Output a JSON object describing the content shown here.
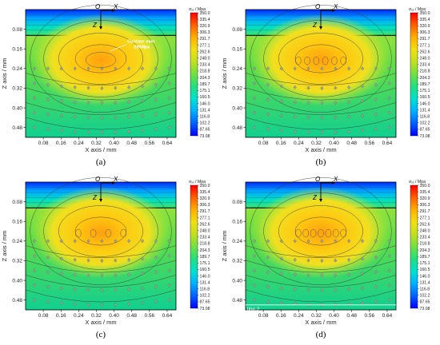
{
  "figure": {
    "panels": [
      {
        "id": "a",
        "caption": "(a)",
        "annotation": "Contour over\n295Mpa",
        "line_label": ""
      },
      {
        "id": "b",
        "caption": "(b)",
        "annotation": "",
        "line_label": ""
      },
      {
        "id": "c",
        "caption": "(c)",
        "annotation": "",
        "line_label": ""
      },
      {
        "id": "d",
        "caption": "(d)",
        "annotation": "",
        "line_label": "line 2"
      }
    ]
  },
  "chart_data": [
    {
      "type": "heatmap",
      "panel": "a",
      "caption": "(a)",
      "xlabel": "X axis / mm",
      "ylabel": "Z axis / mm",
      "xticks": [
        "0.08",
        "0.16",
        "0.24",
        "0.32",
        "0.40",
        "0.48",
        "0.56",
        "0.64"
      ],
      "yticks": [
        "0.08",
        "0.16",
        "0.24",
        "0.32",
        "0.40",
        "0.48"
      ],
      "xlim": [
        0,
        0.68
      ],
      "ylim": [
        0,
        0.52
      ],
      "origin_labels": {
        "o": "O",
        "x": "X",
        "z": "Z"
      },
      "colorbar_title": "σₓₓ / Mpa",
      "colorbar_ticks": [
        "350.0",
        "335.4",
        "320.9",
        "306.3",
        "291.7",
        "277.1",
        "262.6",
        "248.0",
        "233.4",
        "218.8",
        "204.3",
        "189.7",
        "175.1",
        "160.5",
        "146.0",
        "131.4",
        "116.8",
        "102.2",
        "87.65",
        "73.08"
      ],
      "zlim": [
        73.08,
        350.0
      ],
      "annotation": "Contour over 295Mpa",
      "marker_rows_mm": [
        0.24,
        0.3,
        0.36,
        0.42,
        0.48
      ]
    },
    {
      "type": "heatmap",
      "panel": "b",
      "caption": "(b)",
      "xlabel": "X axis / mm",
      "ylabel": "Z axis / mm",
      "xticks": [
        "0.08",
        "0.16",
        "0.24",
        "0.32",
        "0.40",
        "0.48",
        "0.56",
        "0.64"
      ],
      "yticks": [
        "0.08",
        "0.16",
        "0.24",
        "0.32",
        "0.40",
        "0.48"
      ],
      "xlim": [
        0,
        0.68
      ],
      "ylim": [
        0,
        0.52
      ],
      "origin_labels": {
        "o": "O",
        "x": "X",
        "z": "Z"
      },
      "colorbar_title": "σₓₓ / Mpa",
      "colorbar_ticks": [
        "350.0",
        "335.4",
        "320.9",
        "306.3",
        "291.7",
        "277.1",
        "262.6",
        "248.0",
        "233.4",
        "218.8",
        "204.3",
        "189.7",
        "175.1",
        "160.5",
        "146.0",
        "131.4",
        "116.8",
        "102.2",
        "87.65",
        "73.08"
      ],
      "zlim": [
        73.08,
        350.0
      ],
      "marker_rows_mm": [
        0.24,
        0.3,
        0.36,
        0.42,
        0.48
      ]
    },
    {
      "type": "heatmap",
      "panel": "c",
      "caption": "(c)",
      "xlabel": "X axis / mm",
      "ylabel": "Z axis / mm",
      "xticks": [
        "0.08",
        "0.16",
        "0.24",
        "0.32",
        "0.40",
        "0.48",
        "0.56",
        "0.64"
      ],
      "yticks": [
        "0.08",
        "0.16",
        "0.24",
        "0.32",
        "0.40",
        "0.48"
      ],
      "xlim": [
        0,
        0.68
      ],
      "ylim": [
        0,
        0.52
      ],
      "origin_labels": {
        "o": "O",
        "x": "X",
        "z": "Z"
      },
      "colorbar_title": "σₓₓ / Mpa",
      "colorbar_ticks": [
        "350.0",
        "335.4",
        "320.9",
        "306.3",
        "291.7",
        "277.1",
        "262.6",
        "248.0",
        "233.4",
        "218.8",
        "204.3",
        "189.7",
        "175.1",
        "160.5",
        "146.0",
        "131.4",
        "116.8",
        "102.2",
        "87.65",
        "73.08"
      ],
      "zlim": [
        73.08,
        350.0
      ],
      "marker_rows_mm": [
        0.24,
        0.3,
        0.36,
        0.42,
        0.48
      ]
    },
    {
      "type": "heatmap",
      "panel": "d",
      "caption": "(d)",
      "xlabel": "X axis / mm",
      "ylabel": "Z axis / mm",
      "xticks": [
        "0.08",
        "0.16",
        "0.24",
        "0.32",
        "0.40",
        "0.48",
        "0.56",
        "0.64"
      ],
      "yticks": [
        "0.08",
        "0.16",
        "0.24",
        "0.32",
        "0.40",
        "0.48"
      ],
      "xlim": [
        0,
        0.68
      ],
      "ylim": [
        0,
        0.52
      ],
      "origin_labels": {
        "o": "O",
        "x": "X",
        "z": "Z"
      },
      "colorbar_title": "σₓₓ / Mpa",
      "colorbar_ticks": [
        "350.0",
        "335.4",
        "320.9",
        "306.3",
        "291.7",
        "277.1",
        "262.6",
        "248.0",
        "233.4",
        "218.8",
        "204.3",
        "189.7",
        "175.1",
        "160.5",
        "146.0",
        "131.4",
        "116.8",
        "102.2",
        "87.65",
        "73.08"
      ],
      "zlim": [
        73.08,
        350.0
      ],
      "line_label": "line 2",
      "line_z_mm": 0.5,
      "marker_rows_mm": [
        0.24,
        0.3,
        0.36,
        0.42,
        0.48
      ]
    }
  ],
  "colors": {
    "colormap": [
      "#0000ff",
      "#0060ff",
      "#00b0ff",
      "#00e0d0",
      "#20e080",
      "#70e040",
      "#c0e020",
      "#f0e010",
      "#ffb000",
      "#ff6000",
      "#ff0000"
    ],
    "contour": "#333333",
    "marker": "#888888"
  }
}
